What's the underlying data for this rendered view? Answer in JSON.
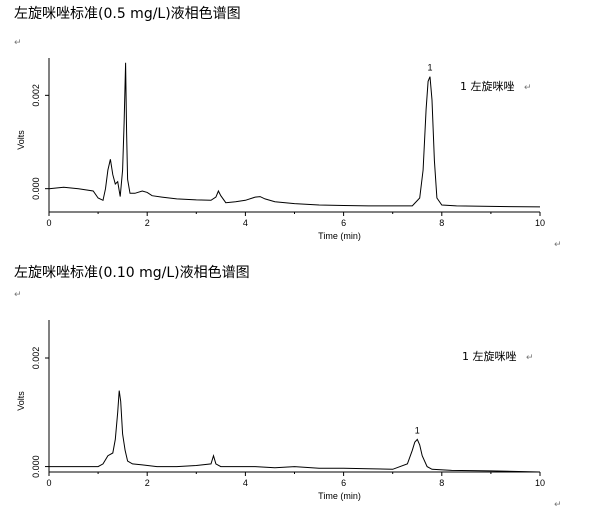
{
  "headings": {
    "top": "左旋咪唑标准(0.5 mg/L)液相色谱图",
    "bottom": "左旋咪唑标准(0.10 mg/L)液相色谱图"
  },
  "para_mark": "↵",
  "chart_data": [
    {
      "type": "line",
      "title": "",
      "xlabel": "Time (min)",
      "ylabel": "Volts",
      "xlim": [
        0,
        10
      ],
      "ylim": [
        -0.0005,
        0.0028
      ],
      "xticks": [
        "0",
        "2",
        "4",
        "6",
        "8",
        "10"
      ],
      "yticks": [
        "0.000",
        "0.002"
      ],
      "legend": "1 左旋咪唑",
      "peak_label": "1",
      "series": [
        {
          "x": [
            0,
            0.3,
            0.6,
            0.9,
            1.0,
            1.1,
            1.15,
            1.2,
            1.25,
            1.3,
            1.35,
            1.4,
            1.45,
            1.5,
            1.53,
            1.56,
            1.58,
            1.6,
            1.65,
            1.75,
            1.9,
            2.0,
            2.1,
            2.3,
            2.6,
            3.0,
            3.3,
            3.4,
            3.45,
            3.5,
            3.6,
            3.8,
            4.0,
            4.2,
            4.3,
            4.4,
            4.6,
            5.0,
            5.5,
            6.0,
            6.5,
            7.0,
            7.4,
            7.55,
            7.62,
            7.68,
            7.72,
            7.76,
            7.8,
            7.85,
            7.9,
            8.0,
            8.3,
            9.0,
            10.0
          ],
          "y": [
            0.0,
            3e-05,
            0.0,
            -5e-05,
            -0.0002,
            -0.00025,
            0.0,
            0.0004,
            0.00063,
            0.0003,
            0.0001,
            0.00015,
            -0.00017,
            0.0004,
            0.0014,
            0.0027,
            0.0012,
            0.0002,
            -0.0001,
            -0.0001,
            -5e-05,
            -8e-05,
            -0.00015,
            -0.00018,
            -0.00022,
            -0.00024,
            -0.00025,
            -0.00018,
            -5e-05,
            -0.00015,
            -0.0003,
            -0.00028,
            -0.00025,
            -0.00018,
            -0.00017,
            -0.00022,
            -0.00028,
            -0.00032,
            -0.00035,
            -0.00036,
            -0.00037,
            -0.00037,
            -0.00037,
            -0.0002,
            0.0004,
            0.0017,
            0.0023,
            0.0024,
            0.0019,
            0.0006,
            -0.0002,
            -0.00035,
            -0.00037,
            -0.00038,
            -0.00039
          ]
        }
      ]
    },
    {
      "type": "line",
      "title": "",
      "xlabel": "Time (min)",
      "ylabel": "Volts",
      "xlim": [
        0,
        10
      ],
      "ylim": [
        -0.0001,
        0.0027
      ],
      "xticks": [
        "0",
        "2",
        "4",
        "6",
        "8",
        "10"
      ],
      "yticks": [
        "0.000",
        "0.002"
      ],
      "legend": "1 左旋咪唑",
      "peak_label": "1",
      "series": [
        {
          "x": [
            0,
            0.5,
            1.0,
            1.1,
            1.2,
            1.3,
            1.35,
            1.4,
            1.43,
            1.46,
            1.5,
            1.55,
            1.6,
            1.7,
            1.9,
            2.2,
            2.6,
            3.0,
            3.3,
            3.35,
            3.4,
            3.5,
            3.8,
            4.2,
            4.6,
            5.0,
            5.5,
            6.0,
            6.5,
            7.0,
            7.3,
            7.4,
            7.45,
            7.5,
            7.55,
            7.6,
            7.7,
            7.8,
            8.2,
            9.0,
            10.0
          ],
          "y": [
            0.0,
            0.0,
            0.0,
            5e-05,
            0.0002,
            0.00025,
            0.0005,
            0.001,
            0.0014,
            0.0012,
            0.0006,
            0.0003,
            0.0001,
            5e-05,
            3e-05,
            0.0,
            0.0,
            2e-05,
            5e-05,
            0.0002,
            5e-05,
            0.0,
            0.0,
            0.0,
            -2e-05,
            0.0,
            -3e-05,
            -3e-05,
            -4e-05,
            -5e-05,
            5e-05,
            0.0003,
            0.00045,
            0.0005,
            0.0004,
            0.0002,
            0.0,
            -5e-05,
            -7e-05,
            -8e-05,
            -0.0001
          ]
        }
      ]
    }
  ]
}
